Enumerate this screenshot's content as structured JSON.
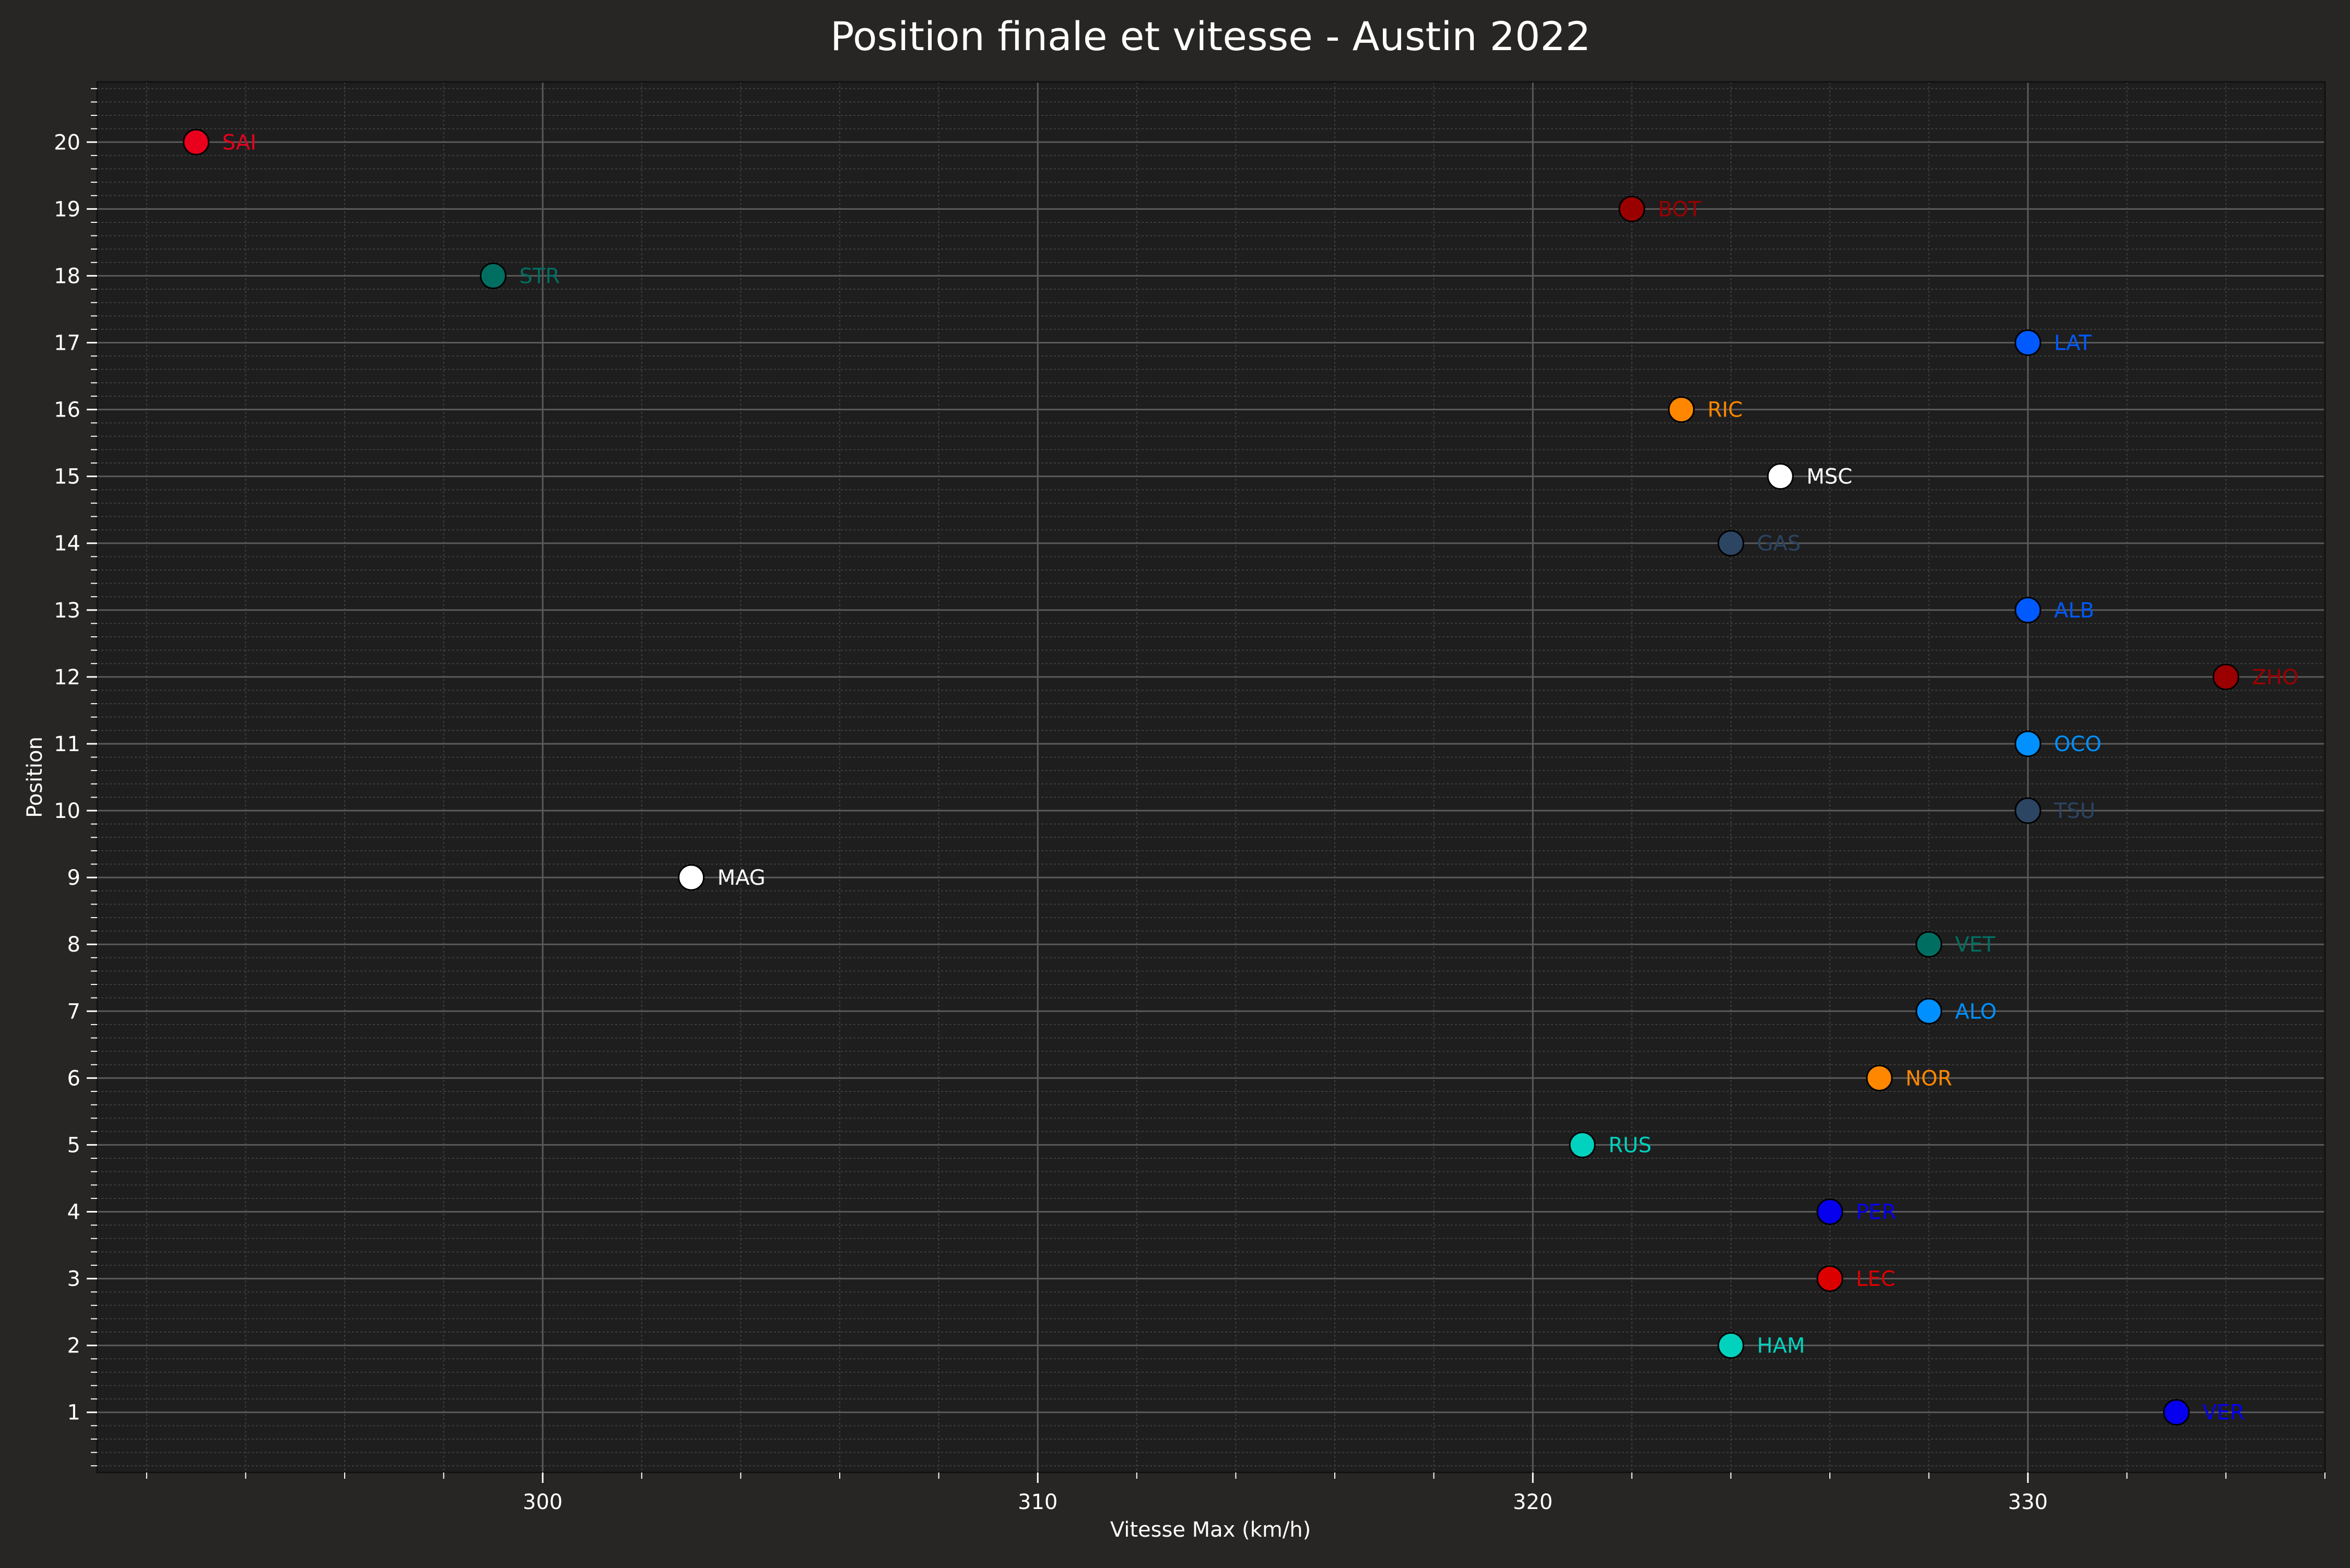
{
  "chart_data": {
    "type": "scatter",
    "title": "Position finale et vitesse - Austin 2022",
    "xlabel": "Vitesse Max (km/h)",
    "ylabel": "Position",
    "xlim": [
      291.0,
      336.0
    ],
    "ylim": [
      0.1,
      20.9
    ],
    "xticks": [
      300,
      310,
      320,
      330
    ],
    "yticks": [
      1,
      2,
      3,
      4,
      5,
      6,
      7,
      8,
      9,
      10,
      11,
      12,
      13,
      14,
      15,
      16,
      17,
      18,
      19,
      20
    ],
    "grid": true,
    "points": [
      {
        "label": "SAI",
        "x": 293,
        "y": 20,
        "color": "#e8001c"
      },
      {
        "label": "BOT",
        "x": 322,
        "y": 19,
        "color": "#9b0000"
      },
      {
        "label": "STR",
        "x": 299,
        "y": 18,
        "color": "#006f62"
      },
      {
        "label": "LAT",
        "x": 330,
        "y": 17,
        "color": "#005aff"
      },
      {
        "label": "RIC",
        "x": 323,
        "y": 16,
        "color": "#ff8700"
      },
      {
        "label": "MSC",
        "x": 325,
        "y": 15,
        "color": "#ffffff"
      },
      {
        "label": "GAS",
        "x": 324,
        "y": 14,
        "color": "#2b4562"
      },
      {
        "label": "ALB",
        "x": 330,
        "y": 13,
        "color": "#005aff"
      },
      {
        "label": "ZHO",
        "x": 334,
        "y": 12,
        "color": "#9b0000"
      },
      {
        "label": "OCO",
        "x": 330,
        "y": 11,
        "color": "#0090ff"
      },
      {
        "label": "TSU",
        "x": 330,
        "y": 10,
        "color": "#2b4562"
      },
      {
        "label": "MAG",
        "x": 303,
        "y": 9,
        "color": "#ffffff"
      },
      {
        "label": "VET",
        "x": 328,
        "y": 8,
        "color": "#006f62"
      },
      {
        "label": "ALO",
        "x": 328,
        "y": 7,
        "color": "#0090ff"
      },
      {
        "label": "NOR",
        "x": 327,
        "y": 6,
        "color": "#ff8700"
      },
      {
        "label": "RUS",
        "x": 321,
        "y": 5,
        "color": "#00d2be"
      },
      {
        "label": "PER",
        "x": 326,
        "y": 4,
        "color": "#0600ef"
      },
      {
        "label": "LEC",
        "x": 326,
        "y": 3,
        "color": "#dc0000"
      },
      {
        "label": "HAM",
        "x": 324,
        "y": 2,
        "color": "#00d2be"
      },
      {
        "label": "VER",
        "x": 333,
        "y": 1,
        "color": "#0600ef"
      }
    ]
  },
  "colors": {
    "figure_background": "#282624",
    "axes_background": "#1e1e1e",
    "text": "#ffffff",
    "major_grid": "#5a5a5a",
    "minor_grid": "#3e3e3e"
  }
}
